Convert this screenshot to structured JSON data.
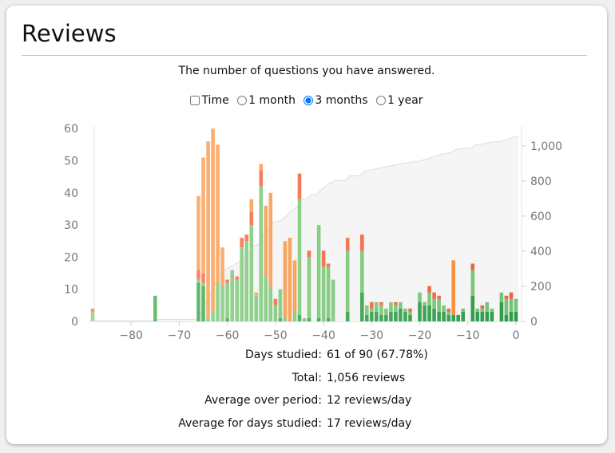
{
  "title": "Reviews",
  "subtitle": "The number of questions you have answered.",
  "controls": {
    "time_label": "Time",
    "time_checked": false,
    "ranges": [
      {
        "label": "1 month",
        "selected": false
      },
      {
        "label": "3 months",
        "selected": true
      },
      {
        "label": "1 year",
        "selected": false
      }
    ]
  },
  "colors": {
    "learn_old": "#fdbe85",
    "learn_new": "#f58a35",
    "relearn_old": "#fc9272",
    "relearn_new": "#f0603d",
    "young_old": "#a1d99b",
    "young_new": "#74c476",
    "mature_old": "#74c476",
    "mature_new": "#2e9b4c",
    "cumulative_fill": "#f5f5f5",
    "cumulative_line": "#dddddd"
  },
  "chart_data": {
    "type": "bar",
    "stacked": true,
    "xlim": [
      -89,
      1
    ],
    "ylim_left": [
      0,
      60.8
    ],
    "ylim_right": [
      0,
      1113
    ],
    "x_ticks": [
      "−80",
      "−70",
      "−60",
      "−50",
      "−40",
      "−30",
      "−20",
      "−10",
      "0"
    ],
    "x_tick_values": [
      -80,
      -70,
      -60,
      -50,
      -40,
      -30,
      -20,
      -10,
      0
    ],
    "y_left_ticks": [
      "0",
      "10",
      "20",
      "30",
      "40",
      "50",
      "60"
    ],
    "y_left_tick_values": [
      0,
      10,
      20,
      30,
      40,
      50,
      60
    ],
    "y_right_ticks": [
      "0",
      "200",
      "400",
      "600",
      "800",
      "1,000"
    ],
    "y_right_tick_values": [
      0,
      200,
      400,
      600,
      800,
      1000
    ],
    "series_order": [
      "mature",
      "young",
      "relearn",
      "learn"
    ],
    "cumulative_series": "Cumulative reviews (right axis)",
    "days": [
      [
        -88,
        0,
        3,
        1,
        0
      ],
      [
        -75,
        8,
        0,
        0,
        0
      ],
      [
        -66,
        12,
        1,
        3,
        23
      ],
      [
        -65,
        11,
        1,
        3,
        36
      ],
      [
        -64,
        0,
        1,
        0,
        55
      ],
      [
        -63,
        0,
        3,
        0,
        57
      ],
      [
        -62,
        0,
        12,
        0,
        43
      ],
      [
        -61,
        0,
        11,
        0,
        12
      ],
      [
        -60,
        1,
        11,
        1,
        0
      ],
      [
        -59,
        0,
        16,
        0,
        0
      ],
      [
        -58,
        0,
        13,
        1,
        0
      ],
      [
        -57,
        0,
        23,
        3,
        0
      ],
      [
        -56,
        0,
        25,
        2,
        0
      ],
      [
        -55,
        0,
        30,
        4,
        4
      ],
      [
        -54,
        0,
        8,
        0,
        1
      ],
      [
        -53,
        0,
        42,
        5,
        2
      ],
      [
        -52,
        0,
        14,
        0,
        22
      ],
      [
        -51,
        0,
        11,
        0,
        29
      ],
      [
        -50,
        0,
        5,
        2,
        0
      ],
      [
        -49,
        1,
        9,
        0,
        0
      ],
      [
        -48,
        0,
        1,
        0,
        24
      ],
      [
        -47,
        0,
        0,
        0,
        26
      ],
      [
        -46,
        0,
        3,
        0,
        16
      ],
      [
        -45,
        2,
        36,
        8,
        0
      ],
      [
        -44,
        0,
        1,
        0,
        0
      ],
      [
        -43,
        1,
        19,
        2,
        0
      ],
      [
        -41,
        1,
        29,
        0,
        0
      ],
      [
        -40,
        0,
        17,
        5,
        0
      ],
      [
        -39,
        1,
        16,
        1,
        0
      ],
      [
        -38,
        0,
        13,
        0,
        0
      ],
      [
        -35,
        3,
        19,
        4,
        0
      ],
      [
        -32,
        9,
        13,
        5,
        0
      ],
      [
        -31,
        2,
        3,
        0,
        0
      ],
      [
        -30,
        3,
        1,
        2,
        0
      ],
      [
        -29,
        3,
        3,
        0,
        0
      ],
      [
        -28,
        2,
        3,
        1,
        0
      ],
      [
        -27,
        2,
        2,
        0,
        0
      ],
      [
        -26,
        3,
        3,
        0,
        0
      ],
      [
        -25,
        3,
        2,
        1,
        0
      ],
      [
        -24,
        4,
        2,
        0,
        0
      ],
      [
        -23,
        3,
        1,
        0,
        0
      ],
      [
        -22,
        2,
        1,
        1,
        0
      ],
      [
        -20,
        6,
        3,
        0,
        0
      ],
      [
        -19,
        5,
        1,
        0,
        0
      ],
      [
        -18,
        5,
        4,
        2,
        0
      ],
      [
        -17,
        4,
        3,
        2,
        0
      ],
      [
        -16,
        3,
        4,
        1,
        0
      ],
      [
        -15,
        3,
        2,
        0,
        0
      ],
      [
        -14,
        2,
        1,
        1,
        0
      ],
      [
        -13,
        2,
        0,
        0,
        17
      ],
      [
        -12,
        2,
        0,
        0,
        0
      ],
      [
        -11,
        3,
        1,
        0,
        0
      ],
      [
        -9,
        8,
        8,
        2,
        0
      ],
      [
        -8,
        3,
        1,
        0,
        0
      ],
      [
        -7,
        3,
        1,
        1,
        0
      ],
      [
        -6,
        3,
        3,
        0,
        0
      ],
      [
        -5,
        3,
        1,
        0,
        0
      ],
      [
        -3,
        6,
        3,
        0,
        0
      ],
      [
        -2,
        2,
        5,
        1,
        0
      ],
      [
        -1,
        3,
        4,
        2,
        0
      ],
      [
        0,
        3,
        4,
        0,
        0
      ]
    ]
  },
  "stats": [
    {
      "label": "Days studied:",
      "value": "61 of 90 (67.78%)"
    },
    {
      "label": "Total:",
      "value": "1,056 reviews"
    },
    {
      "label": "Average over period:",
      "value": "12 reviews/day"
    },
    {
      "label": "Average for days studied:",
      "value": "17 reviews/day"
    }
  ]
}
